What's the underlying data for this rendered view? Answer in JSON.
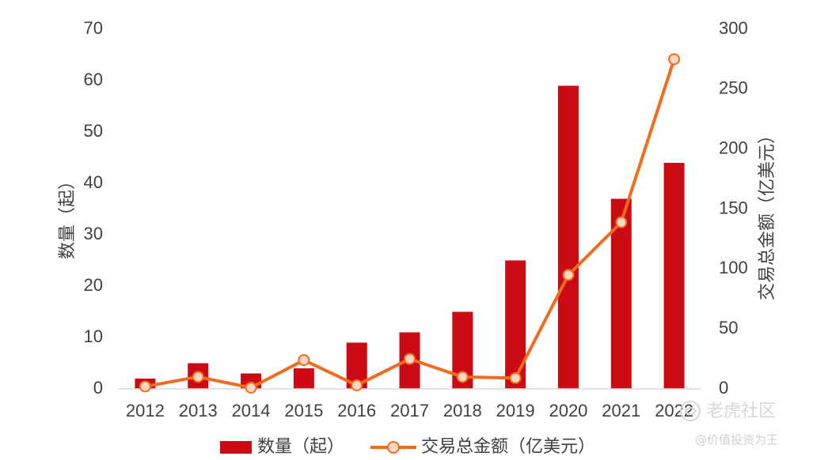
{
  "chart_data": {
    "type": "bar",
    "categories": [
      "2012",
      "2013",
      "2014",
      "2015",
      "2016",
      "2017",
      "2018",
      "2019",
      "2020",
      "2021",
      "2022"
    ],
    "series": [
      {
        "name": "数量（起）",
        "type": "bar",
        "axis": "left",
        "color": "#cc0a14",
        "values": [
          2,
          5,
          3,
          4,
          9,
          11,
          15,
          25,
          59,
          37,
          44
        ]
      },
      {
        "name": "交易总金额（亿美元）",
        "type": "line",
        "axis": "right",
        "color": "#f26b1d",
        "values": [
          2,
          10,
          1,
          24,
          3,
          25,
          10,
          9,
          95,
          139,
          275
        ]
      }
    ],
    "y_left": {
      "label": "数量（起）",
      "lim": [
        0,
        70
      ],
      "ticks": [
        "0",
        "10",
        "20",
        "30",
        "40",
        "50",
        "60",
        "70"
      ]
    },
    "y_right": {
      "label": "交易总金额（亿美元）",
      "lim": [
        0,
        300
      ],
      "ticks": [
        "0",
        "50",
        "100",
        "150",
        "200",
        "250",
        "300"
      ]
    },
    "legend": {
      "position": "bottom"
    },
    "grid": false
  },
  "watermark": {
    "brand": "老虎社区",
    "author": "@价值投资为王"
  }
}
